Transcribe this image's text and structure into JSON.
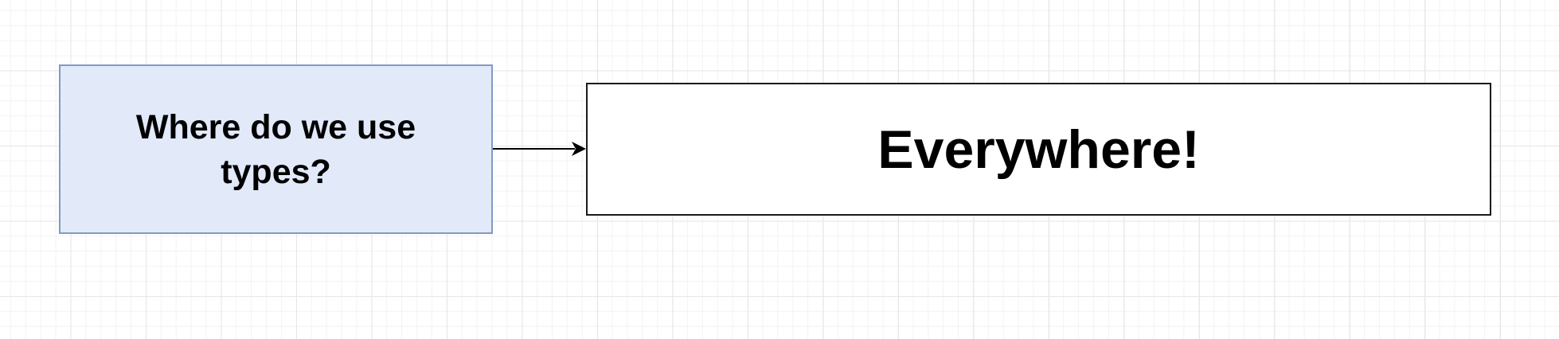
{
  "diagram": {
    "nodes": [
      {
        "id": "question",
        "text": "Where do we use types?",
        "fill": "#e2e9f8",
        "stroke": "#7f9bc4"
      },
      {
        "id": "answer",
        "text": "Everywhere!",
        "fill": "#ffffff",
        "stroke": "#1a1a1a"
      }
    ],
    "edges": [
      {
        "from": "question",
        "to": "answer",
        "type": "arrow"
      }
    ],
    "colors": {
      "grid_line": "#e6e6e6",
      "edge": "#000000"
    }
  }
}
